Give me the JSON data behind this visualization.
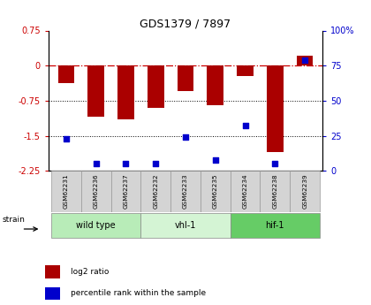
{
  "title": "GDS1379 / 7897",
  "samples": [
    "GSM62231",
    "GSM62236",
    "GSM62237",
    "GSM62232",
    "GSM62233",
    "GSM62235",
    "GSM62234",
    "GSM62238",
    "GSM62239"
  ],
  "log2_ratio": [
    -0.38,
    -1.1,
    -1.15,
    -0.9,
    -0.55,
    -0.85,
    -0.22,
    -1.85,
    0.22
  ],
  "percentile_rank": [
    23,
    5,
    5,
    5,
    24,
    8,
    32,
    5,
    79
  ],
  "groups": [
    {
      "label": "wild type",
      "start": 0,
      "end": 3,
      "color": "#b8ecb8"
    },
    {
      "label": "vhl-1",
      "start": 3,
      "end": 6,
      "color": "#d4f4d4"
    },
    {
      "label": "hif-1",
      "start": 6,
      "end": 9,
      "color": "#66cc66"
    }
  ],
  "ylim_left": [
    -2.25,
    0.75
  ],
  "ylim_right": [
    0,
    100
  ],
  "bar_color": "#aa0000",
  "scatter_color": "#0000cc",
  "zero_line_color": "#cc0000",
  "dotted_line_color": "#000000",
  "background_color": "#ffffff",
  "plot_bg_color": "#ffffff",
  "bar_width": 0.55,
  "legend_items": [
    {
      "label": "log2 ratio",
      "color": "#aa0000"
    },
    {
      "label": "percentile rank within the sample",
      "color": "#0000cc"
    }
  ],
  "left_yticks": [
    0.75,
    0,
    -0.75,
    -1.5,
    -2.25
  ],
  "left_yticklabels": [
    "0.75",
    "0",
    "-0.75",
    "-1.5",
    "-2.25"
  ],
  "right_yticks": [
    0,
    25,
    50,
    75,
    100
  ],
  "right_yticklabels": [
    "0",
    "25",
    "50",
    "75",
    "100%"
  ]
}
